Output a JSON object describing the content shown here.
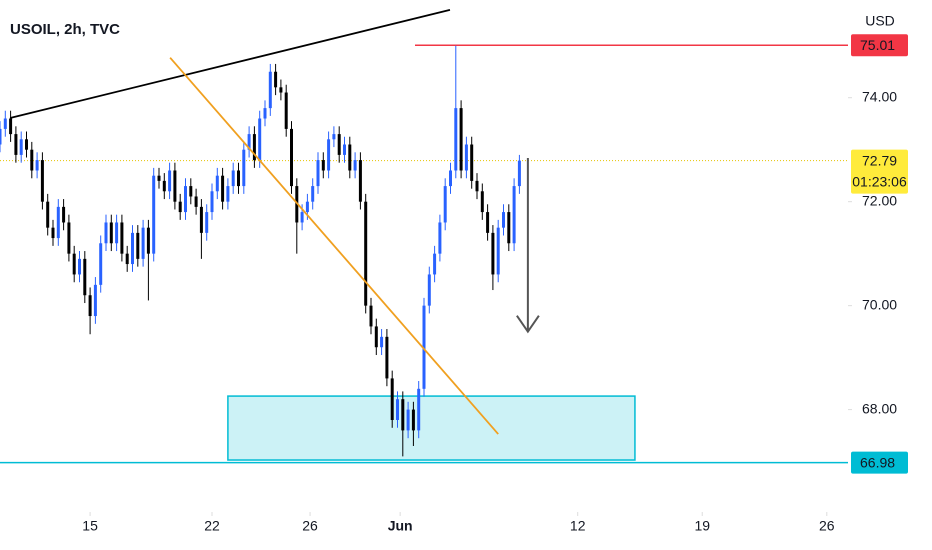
{
  "chart_data": {
    "type": "candlestick",
    "title": "USOIL, 2h, TVC",
    "y_unit": "USD",
    "up_color": "#2962ff",
    "down_color": "#000000",
    "x": [
      0,
      1,
      2,
      3,
      4,
      5,
      6,
      7,
      8,
      9,
      10,
      11,
      12,
      13,
      14,
      15,
      16,
      17,
      18,
      19,
      20,
      21,
      22,
      23,
      24,
      25,
      26,
      27,
      28,
      29,
      30,
      31,
      32,
      33,
      34,
      35,
      36,
      37,
      38,
      39,
      40,
      41,
      42,
      43,
      44,
      45,
      46,
      47,
      48,
      49,
      50,
      51,
      52,
      53,
      54,
      55,
      56,
      57,
      58,
      59,
      60,
      61,
      62,
      63,
      64,
      65,
      66,
      67,
      68,
      69,
      70,
      71,
      72,
      73,
      74,
      75,
      76,
      77,
      78,
      79,
      80,
      81,
      82,
      83,
      84,
      85,
      86,
      87,
      88,
      89,
      90,
      91,
      92,
      93,
      94,
      95,
      96,
      97,
      98
    ],
    "open": [
      73.1,
      73.4,
      73.6,
      73.3,
      72.9,
      73.2,
      73.0,
      72.6,
      72.8,
      72.0,
      71.5,
      71.3,
      71.9,
      71.6,
      71.0,
      70.6,
      70.9,
      70.2,
      69.8,
      70.4,
      71.2,
      71.6,
      71.2,
      71.6,
      71.0,
      70.8,
      71.4,
      70.9,
      71.5,
      71.0,
      72.5,
      72.4,
      72.2,
      72.6,
      72.0,
      71.8,
      72.3,
      72.1,
      71.9,
      71.4,
      71.8,
      72.2,
      72.5,
      72.0,
      72.3,
      72.6,
      72.3,
      73.0,
      73.3,
      72.8,
      73.6,
      73.8,
      74.5,
      74.2,
      74.1,
      73.4,
      72.3,
      71.6,
      71.8,
      72.0,
      72.3,
      72.8,
      72.6,
      73.2,
      73.3,
      72.9,
      73.1,
      72.6,
      72.8,
      72.0,
      70.0,
      69.6,
      69.2,
      69.4,
      68.6,
      67.8,
      68.2,
      67.6,
      68.0,
      67.6,
      68.4,
      70.0,
      70.6,
      71.0,
      71.6,
      72.3,
      72.6,
      73.8,
      72.6,
      73.1,
      72.4,
      72.2,
      71.8,
      71.4,
      70.6,
      71.5,
      71.8,
      71.2,
      72.3
    ],
    "high": [
      73.55,
      73.75,
      73.75,
      73.45,
      73.35,
      73.35,
      73.15,
      72.95,
      72.95,
      72.15,
      71.65,
      72.05,
      72.05,
      71.75,
      71.15,
      71.05,
      71.05,
      70.35,
      70.55,
      71.35,
      71.75,
      71.75,
      71.75,
      71.75,
      71.15,
      71.55,
      71.55,
      71.65,
      71.65,
      72.65,
      72.65,
      72.55,
      72.75,
      72.75,
      72.15,
      72.45,
      72.45,
      72.25,
      72.05,
      71.95,
      72.35,
      72.65,
      72.65,
      72.45,
      72.75,
      72.75,
      73.15,
      73.45,
      73.45,
      73.75,
      73.95,
      74.65,
      74.65,
      74.35,
      74.25,
      73.55,
      72.45,
      71.95,
      72.15,
      72.45,
      72.95,
      72.95,
      73.35,
      73.45,
      73.45,
      73.25,
      73.25,
      72.95,
      72.95,
      72.15,
      70.15,
      69.75,
      69.55,
      69.55,
      68.75,
      68.35,
      68.35,
      68.15,
      68.15,
      68.55,
      70.15,
      70.75,
      71.15,
      71.75,
      72.45,
      72.75,
      75.0,
      73.95,
      73.25,
      73.25,
      72.55,
      72.35,
      71.95,
      71.55,
      71.65,
      71.95,
      71.95,
      72.45,
      72.9
    ],
    "low": [
      72.95,
      73.25,
      73.15,
      72.75,
      72.75,
      72.85,
      72.45,
      72.45,
      71.85,
      71.35,
      71.15,
      71.15,
      71.45,
      70.85,
      70.45,
      70.45,
      70.05,
      69.45,
      69.65,
      70.25,
      71.05,
      71.05,
      71.05,
      70.85,
      70.65,
      70.65,
      70.75,
      70.75,
      70.1,
      70.85,
      72.25,
      72.05,
      72.05,
      71.85,
      71.65,
      71.65,
      71.95,
      71.75,
      70.9,
      71.25,
      71.65,
      72.05,
      71.85,
      71.85,
      72.15,
      72.15,
      72.15,
      72.85,
      72.65,
      72.65,
      73.45,
      73.65,
      74.05,
      73.95,
      73.25,
      72.15,
      71.0,
      71.45,
      71.65,
      71.85,
      72.15,
      72.45,
      72.45,
      73.05,
      72.75,
      72.75,
      72.45,
      72.45,
      71.85,
      69.85,
      69.45,
      69.05,
      69.05,
      68.45,
      67.65,
      67.65,
      67.1,
      67.45,
      67.3,
      67.45,
      68.25,
      69.85,
      70.45,
      70.85,
      71.45,
      72.15,
      72.45,
      72.45,
      72.45,
      72.25,
      72.05,
      71.65,
      71.25,
      70.3,
      70.45,
      71.35,
      71.05,
      71.05,
      72.15
    ],
    "close": [
      73.4,
      73.6,
      73.3,
      72.9,
      73.2,
      73.0,
      72.6,
      72.8,
      72.0,
      71.5,
      71.3,
      71.9,
      71.6,
      71.0,
      70.6,
      70.9,
      70.2,
      69.8,
      70.4,
      71.2,
      71.6,
      71.2,
      71.6,
      71.0,
      70.8,
      71.4,
      70.9,
      71.5,
      71.0,
      72.5,
      72.4,
      72.2,
      72.6,
      72.0,
      71.8,
      72.3,
      72.1,
      71.9,
      71.4,
      71.8,
      72.2,
      72.5,
      72.0,
      72.3,
      72.6,
      72.3,
      73.0,
      73.3,
      72.8,
      73.6,
      73.8,
      74.5,
      74.2,
      74.1,
      73.4,
      72.3,
      71.6,
      71.8,
      72.0,
      72.3,
      72.8,
      72.6,
      73.2,
      73.3,
      72.9,
      73.1,
      72.6,
      72.8,
      72.0,
      70.0,
      69.6,
      69.2,
      69.4,
      68.6,
      67.8,
      68.2,
      67.6,
      68.0,
      67.6,
      68.4,
      70.0,
      70.6,
      71.0,
      71.6,
      72.3,
      72.6,
      73.8,
      72.6,
      73.1,
      72.4,
      72.2,
      71.8,
      71.4,
      70.6,
      71.5,
      71.8,
      71.2,
      72.3,
      72.79
    ],
    "xlim": [
      0,
      160
    ],
    "ylim": [
      66.03,
      75.88
    ],
    "xticks": [
      {
        "value": 17,
        "label": "15"
      },
      {
        "value": 40,
        "label": "22"
      },
      {
        "value": 58.5,
        "label": "26"
      },
      {
        "value": 75.5,
        "label": "Jun"
      },
      {
        "value": 109,
        "label": "12"
      },
      {
        "value": 132.5,
        "label": "19"
      },
      {
        "value": 156,
        "label": "26"
      }
    ],
    "yticks": [
      {
        "value": 74,
        "label": "74.00"
      },
      {
        "value": 72,
        "label": "72.00"
      },
      {
        "value": 70,
        "label": "70.00"
      },
      {
        "value": 68,
        "label": "68.00"
      }
    ],
    "current_price": {
      "value": 72.79,
      "countdown": "01:23:06",
      "color": "#ffeb3b"
    },
    "levels": [
      {
        "value": 75.01,
        "color": "#f23645"
      },
      {
        "value": 66.98,
        "color": "#00bcd4"
      }
    ],
    "trendlines": [
      {
        "x": [
          1.9,
          84.9
        ],
        "y": [
          73.61,
          75.69
        ],
        "color": "#000000"
      },
      {
        "x": [
          32.1,
          94
        ],
        "y": [
          74.77,
          67.53
        ],
        "color": "#f0a020"
      }
    ],
    "zone": {
      "x": [
        43,
        119.8
      ],
      "y": [
        67.03,
        68.26
      ],
      "color": "#00bcd4"
    },
    "arrow": {
      "x": 99.6,
      "y": [
        72.84,
        69.5
      ],
      "color": "#555555"
    }
  }
}
